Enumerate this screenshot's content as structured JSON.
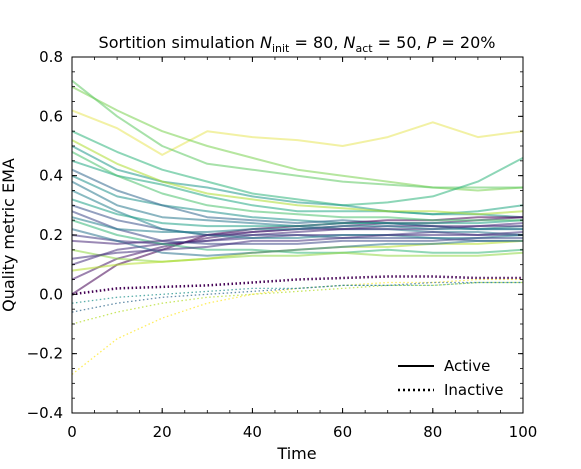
{
  "chart_data": {
    "type": "line",
    "title": {
      "prefix": "Sortition simulation ",
      "n1": "N",
      "n1_sub": "init",
      "n1_rest": " = 80, ",
      "n2": "N",
      "n2_sub": "act",
      "n2_rest": " = 50, ",
      "p": "P",
      "p_rest": " = 20%"
    },
    "xlabel": "Time",
    "ylabel": "Quality metric EMA",
    "xlim": [
      0,
      100
    ],
    "ylim": [
      -0.4,
      0.8
    ],
    "xticks": [
      0,
      20,
      40,
      60,
      80,
      100
    ],
    "xtick_labels": [
      "0",
      "20",
      "40",
      "60",
      "80",
      "100"
    ],
    "yticks": [
      -0.4,
      -0.2,
      0.0,
      0.2,
      0.4,
      0.6,
      0.8
    ],
    "ytick_labels": [
      "−0.4",
      "−0.2",
      "0.0",
      "0.2",
      "0.4",
      "0.6",
      "0.8"
    ],
    "colormap": "viridis",
    "legend": {
      "position": "lower-right",
      "entries": [
        {
          "label": "Active",
          "style": "solid"
        },
        {
          "label": "Inactive",
          "style": "dotted"
        }
      ]
    },
    "series": [
      {
        "style": "solid",
        "color": "#e8e55a",
        "x": [
          0,
          10,
          20,
          30,
          40,
          50,
          60,
          70,
          80,
          90,
          100
        ],
        "y": [
          0.62,
          0.56,
          0.47,
          0.55,
          0.53,
          0.52,
          0.5,
          0.53,
          0.58,
          0.53,
          0.55
        ]
      },
      {
        "style": "solid",
        "color": "#7ad151",
        "x": [
          0,
          10,
          20,
          30,
          40,
          50,
          60,
          70,
          80,
          90,
          100
        ],
        "y": [
          0.7,
          0.62,
          0.55,
          0.5,
          0.46,
          0.42,
          0.4,
          0.38,
          0.36,
          0.35,
          0.36
        ]
      },
      {
        "style": "solid",
        "color": "#5ec962",
        "x": [
          0,
          10,
          20,
          30,
          40,
          50,
          60,
          70,
          80,
          90,
          100
        ],
        "y": [
          0.72,
          0.6,
          0.5,
          0.44,
          0.42,
          0.4,
          0.38,
          0.37,
          0.36,
          0.36,
          0.36
        ]
      },
      {
        "style": "solid",
        "color": "#2fb47c",
        "x": [
          0,
          10,
          20,
          30,
          40,
          50,
          60,
          70,
          80,
          90,
          100
        ],
        "y": [
          0.55,
          0.48,
          0.42,
          0.38,
          0.34,
          0.32,
          0.3,
          0.31,
          0.33,
          0.38,
          0.46
        ]
      },
      {
        "style": "solid",
        "color": "#22a884",
        "x": [
          0,
          10,
          20,
          30,
          40,
          50,
          60,
          70,
          80,
          90,
          100
        ],
        "y": [
          0.45,
          0.4,
          0.37,
          0.33,
          0.3,
          0.28,
          0.28,
          0.28,
          0.27,
          0.28,
          0.3
        ]
      },
      {
        "style": "solid",
        "color": "#1f988b",
        "x": [
          0,
          10,
          20,
          30,
          40,
          50,
          60,
          70,
          80,
          90,
          100
        ],
        "y": [
          0.5,
          0.42,
          0.38,
          0.36,
          0.33,
          0.31,
          0.3,
          0.28,
          0.27,
          0.27,
          0.26
        ]
      },
      {
        "style": "solid",
        "color": "#21918c",
        "x": [
          0,
          10,
          20,
          30,
          40,
          50,
          60,
          70,
          80,
          90,
          100
        ],
        "y": [
          0.4,
          0.33,
          0.3,
          0.28,
          0.26,
          0.25,
          0.24,
          0.24,
          0.23,
          0.22,
          0.23
        ]
      },
      {
        "style": "solid",
        "color": "#2a788e",
        "x": [
          0,
          10,
          20,
          30,
          40,
          50,
          60,
          70,
          80,
          90,
          100
        ],
        "y": [
          0.38,
          0.3,
          0.26,
          0.25,
          0.24,
          0.23,
          0.22,
          0.22,
          0.21,
          0.21,
          0.2
        ]
      },
      {
        "style": "solid",
        "color": "#31688e",
        "x": [
          0,
          10,
          20,
          30,
          40,
          50,
          60,
          70,
          80,
          90,
          100
        ],
        "y": [
          0.42,
          0.35,
          0.3,
          0.26,
          0.25,
          0.24,
          0.25,
          0.24,
          0.23,
          0.22,
          0.22
        ]
      },
      {
        "style": "solid",
        "color": "#3b528b",
        "x": [
          0,
          10,
          20,
          30,
          40,
          50,
          60,
          70,
          80,
          90,
          100
        ],
        "y": [
          0.3,
          0.25,
          0.22,
          0.2,
          0.2,
          0.2,
          0.19,
          0.19,
          0.19,
          0.18,
          0.18
        ]
      },
      {
        "style": "solid",
        "color": "#443983",
        "x": [
          0,
          10,
          20,
          30,
          40,
          50,
          60,
          70,
          80,
          90,
          100
        ],
        "y": [
          0.2,
          0.18,
          0.17,
          0.18,
          0.19,
          0.2,
          0.2,
          0.2,
          0.21,
          0.2,
          0.2
        ]
      },
      {
        "style": "solid",
        "color": "#472d7b",
        "x": [
          0,
          10,
          20,
          30,
          40,
          50,
          60,
          70,
          80,
          90,
          100
        ],
        "y": [
          0.1,
          0.15,
          0.17,
          0.18,
          0.2,
          0.21,
          0.22,
          0.22,
          0.22,
          0.23,
          0.24
        ]
      },
      {
        "style": "solid",
        "color": "#481a6c",
        "x": [
          0,
          10,
          20,
          30,
          40,
          50,
          60,
          70,
          80,
          90,
          100
        ],
        "y": [
          0.05,
          0.12,
          0.16,
          0.19,
          0.21,
          0.22,
          0.23,
          0.24,
          0.24,
          0.25,
          0.26
        ]
      },
      {
        "style": "solid",
        "color": "#440154",
        "x": [
          0,
          10,
          20,
          30,
          40,
          50,
          60,
          70,
          80,
          90,
          100
        ],
        "y": [
          0.0,
          0.1,
          0.15,
          0.2,
          0.22,
          0.23,
          0.24,
          0.25,
          0.25,
          0.26,
          0.26
        ]
      },
      {
        "style": "solid",
        "color": "#35b779",
        "x": [
          0,
          10,
          20,
          30,
          40,
          50,
          60,
          70,
          80,
          90,
          100
        ],
        "y": [
          0.25,
          0.2,
          0.17,
          0.15,
          0.15,
          0.14,
          0.14,
          0.15,
          0.14,
          0.14,
          0.15
        ]
      },
      {
        "style": "solid",
        "color": "#90d743",
        "x": [
          0,
          10,
          20,
          30,
          40,
          50,
          60,
          70,
          80,
          90,
          100
        ],
        "y": [
          0.15,
          0.12,
          0.11,
          0.12,
          0.13,
          0.13,
          0.14,
          0.13,
          0.13,
          0.13,
          0.14
        ]
      },
      {
        "style": "solid",
        "color": "#b5de2b",
        "x": [
          0,
          10,
          20,
          30,
          40,
          50,
          60,
          70,
          80,
          90,
          100
        ],
        "y": [
          0.08,
          0.1,
          0.11,
          0.12,
          0.14,
          0.15,
          0.16,
          0.16,
          0.17,
          0.17,
          0.18
        ]
      },
      {
        "style": "solid",
        "color": "#2c728e",
        "x": [
          0,
          10,
          20,
          30,
          40,
          50,
          60,
          70,
          80,
          90,
          100
        ],
        "y": [
          0.22,
          0.18,
          0.14,
          0.13,
          0.14,
          0.15,
          0.16,
          0.17,
          0.17,
          0.18,
          0.18
        ]
      },
      {
        "style": "solid",
        "color": "#26828e",
        "x": [
          0,
          10,
          20,
          30,
          40,
          50,
          60,
          70,
          80,
          90,
          100
        ],
        "y": [
          0.35,
          0.28,
          0.22,
          0.2,
          0.19,
          0.19,
          0.2,
          0.2,
          0.19,
          0.19,
          0.2
        ]
      },
      {
        "style": "solid",
        "color": "#3e4989",
        "x": [
          0,
          10,
          20,
          30,
          40,
          50,
          60,
          70,
          80,
          90,
          100
        ],
        "y": [
          0.28,
          0.22,
          0.18,
          0.17,
          0.17,
          0.17,
          0.18,
          0.18,
          0.18,
          0.19,
          0.19
        ]
      },
      {
        "style": "solid",
        "color": "#46327e",
        "x": [
          0,
          10,
          20,
          30,
          40,
          50,
          60,
          70,
          80,
          90,
          100
        ],
        "y": [
          0.12,
          0.14,
          0.15,
          0.16,
          0.18,
          0.18,
          0.19,
          0.2,
          0.2,
          0.2,
          0.21
        ]
      },
      {
        "style": "solid",
        "color": "#482878",
        "x": [
          0,
          10,
          20,
          30,
          40,
          50,
          60,
          70,
          80,
          90,
          100
        ],
        "y": [
          0.18,
          0.17,
          0.18,
          0.2,
          0.21,
          0.22,
          0.22,
          0.23,
          0.23,
          0.23,
          0.23
        ]
      },
      {
        "style": "solid",
        "color": "#1fa187",
        "x": [
          0,
          10,
          20,
          30,
          40,
          50,
          60,
          70,
          80,
          90,
          100
        ],
        "y": [
          0.32,
          0.27,
          0.24,
          0.23,
          0.23,
          0.23,
          0.24,
          0.24,
          0.24,
          0.24,
          0.25
        ]
      },
      {
        "style": "solid",
        "color": "#4ac16d",
        "x": [
          0,
          10,
          20,
          30,
          40,
          50,
          60,
          70,
          80,
          90,
          100
        ],
        "y": [
          0.48,
          0.4,
          0.34,
          0.3,
          0.28,
          0.27,
          0.26,
          0.26,
          0.25,
          0.25,
          0.25
        ]
      },
      {
        "style": "solid",
        "color": "#addc30",
        "x": [
          0,
          10,
          20,
          30,
          40,
          50,
          60,
          70,
          80,
          90,
          100
        ],
        "y": [
          0.52,
          0.44,
          0.38,
          0.34,
          0.32,
          0.3,
          0.29,
          0.28,
          0.28,
          0.27,
          0.28
        ]
      },
      {
        "style": "solid",
        "color": "#277f8e",
        "x": [
          0,
          10,
          20,
          30,
          40,
          50,
          60,
          70,
          80,
          90,
          100
        ],
        "y": [
          0.26,
          0.22,
          0.21,
          0.21,
          0.22,
          0.22,
          0.23,
          0.23,
          0.22,
          0.22,
          0.22
        ]
      },
      {
        "style": "dotted",
        "color": "#440154",
        "x": [
          0,
          10,
          20,
          30,
          40,
          50,
          60,
          70,
          80,
          90,
          100
        ],
        "y": [
          0.0,
          0.02,
          0.025,
          0.03,
          0.04,
          0.05,
          0.055,
          0.06,
          0.06,
          0.055,
          0.055
        ]
      },
      {
        "style": "dotted",
        "color": "#fde725",
        "x": [
          0,
          10,
          20,
          30,
          40,
          50,
          60,
          70,
          80,
          90,
          100
        ],
        "y": [
          -0.27,
          -0.15,
          -0.08,
          -0.03,
          0.0,
          0.02,
          0.03,
          0.04,
          0.04,
          0.05,
          0.05
        ]
      },
      {
        "style": "dotted",
        "color": "#b5de2b",
        "x": [
          0,
          10,
          20,
          30,
          40,
          50,
          60,
          70,
          80,
          90,
          100
        ],
        "y": [
          -0.1,
          -0.06,
          -0.03,
          -0.01,
          0.0,
          0.01,
          0.02,
          0.03,
          0.03,
          0.04,
          0.04
        ]
      },
      {
        "style": "dotted",
        "color": "#31688e",
        "x": [
          0,
          10,
          20,
          30,
          40,
          50,
          60,
          70,
          80,
          90,
          100
        ],
        "y": [
          -0.06,
          -0.03,
          -0.01,
          0.0,
          0.01,
          0.02,
          0.03,
          0.03,
          0.04,
          0.04,
          0.04
        ]
      },
      {
        "style": "dotted",
        "color": "#21918c",
        "x": [
          0,
          10,
          20,
          30,
          40,
          50,
          60,
          70,
          80,
          90,
          100
        ],
        "y": [
          -0.03,
          -0.01,
          0.0,
          0.01,
          0.02,
          0.02,
          0.03,
          0.03,
          0.03,
          0.04,
          0.04
        ]
      }
    ]
  }
}
